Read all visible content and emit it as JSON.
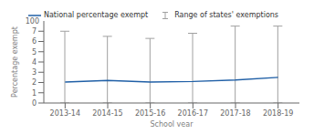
{
  "chart_data": {
    "type": "line",
    "xlabel": "School year",
    "ylabel": "Percentage exempt",
    "categories": [
      "2013-14",
      "2014-15",
      "2015-16",
      "2016-17",
      "2017-18",
      "2018-19"
    ],
    "series": [
      {
        "name": "National percentage exempt",
        "type": "line",
        "color": "#1f5fa6",
        "values": [
          2.05,
          2.2,
          2.05,
          2.1,
          2.25,
          2.5
        ]
      },
      {
        "name": "Range of states' exemptions",
        "type": "range",
        "color": "#a0a0a0",
        "low": [
          0.0,
          0.0,
          0.0,
          0.0,
          0.0,
          0.0
        ],
        "high": [
          7.0,
          6.5,
          6.3,
          6.8,
          7.5,
          7.5
        ]
      }
    ],
    "ylim": [
      0,
      8
    ],
    "yticks": [
      0,
      1,
      2,
      3,
      4,
      5,
      6,
      7
    ],
    "annotations": [
      {
        "text": "100"
      }
    ],
    "grid": false,
    "legend": "top"
  }
}
